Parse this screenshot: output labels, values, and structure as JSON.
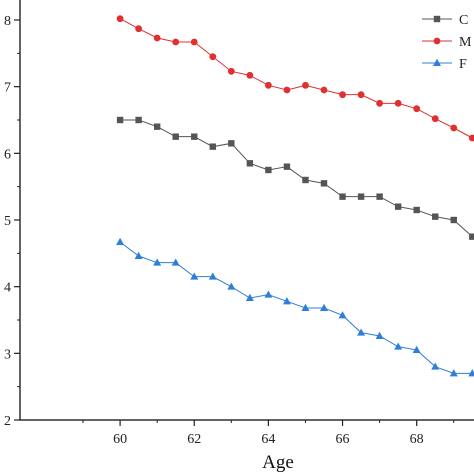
{
  "chart_data": {
    "type": "line",
    "xlabel": "Age",
    "ylabel": "",
    "xlim": [
      57.3,
      69.6
    ],
    "ylim": [
      2,
      8.3
    ],
    "xticks": [
      60,
      62,
      64,
      66,
      68
    ],
    "yticks": [
      2,
      3,
      4,
      5,
      6,
      7,
      8
    ],
    "grid": false,
    "legend_position": "top-right",
    "x": [
      60,
      60.5,
      61,
      61.5,
      62,
      62.5,
      63,
      63.5,
      64,
      64.5,
      65,
      65.5,
      66,
      66.5,
      67,
      67.5,
      68,
      68.5,
      69,
      69.5
    ],
    "series": [
      {
        "name": "C",
        "color": "#555555",
        "marker": "square",
        "values": [
          6.5,
          6.5,
          6.4,
          6.25,
          6.25,
          6.1,
          6.15,
          5.85,
          5.75,
          5.8,
          5.6,
          5.55,
          5.35,
          5.35,
          5.35,
          5.2,
          5.15,
          5.05,
          5.0,
          4.75
        ]
      },
      {
        "name": "M",
        "color": "#e03030",
        "marker": "circle",
        "values": [
          8.02,
          7.87,
          7.73,
          7.67,
          7.67,
          7.45,
          7.23,
          7.17,
          7.02,
          6.95,
          7.02,
          6.95,
          6.88,
          6.88,
          6.75,
          6.75,
          6.67,
          6.52,
          6.38,
          6.23
        ]
      },
      {
        "name": "F",
        "color": "#2f7fd8",
        "marker": "triangle",
        "values": [
          4.67,
          4.46,
          4.36,
          4.36,
          4.15,
          4.15,
          4.0,
          3.83,
          3.88,
          3.78,
          3.68,
          3.68,
          3.57,
          3.31,
          3.26,
          3.1,
          3.05,
          2.8,
          2.7,
          2.7
        ]
      }
    ]
  }
}
